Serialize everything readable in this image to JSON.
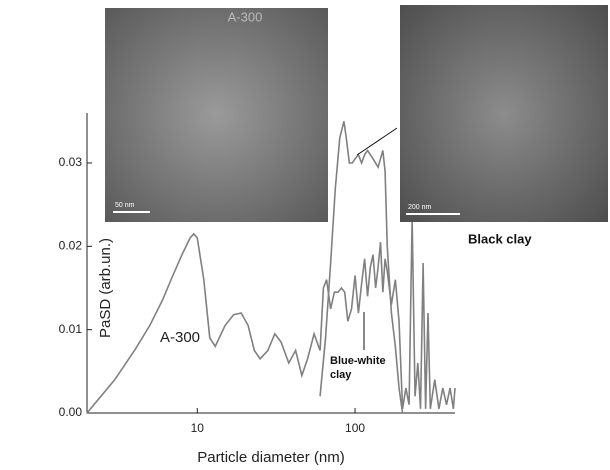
{
  "chart_data": {
    "type": "line",
    "x_label": "Particle  diameter  (nm)",
    "y_label": "PaSD  (arb.un.)",
    "xlim": [
      2,
      430
    ],
    "log_x": true,
    "xticks": [
      10,
      100
    ],
    "ylim": [
      0,
      0.036
    ],
    "yticks": [
      {
        "value": 0,
        "label": "0.00"
      },
      0.01,
      0.02,
      0.03
    ],
    "series": [
      {
        "name": "A-300",
        "color": "#808080",
        "x": [
          2,
          3,
          4,
          5,
          6,
          7,
          8,
          9,
          9.5,
          10,
          11,
          12,
          13,
          15,
          17,
          19,
          21,
          23,
          25,
          28,
          31,
          34,
          38,
          42,
          46,
          50,
          55,
          60
        ],
        "values": [
          0,
          0.004,
          0.0075,
          0.0105,
          0.0135,
          0.0165,
          0.019,
          0.021,
          0.0215,
          0.021,
          0.016,
          0.009,
          0.008,
          0.0105,
          0.0118,
          0.012,
          0.0105,
          0.0075,
          0.0065,
          0.0075,
          0.0095,
          0.0085,
          0.006,
          0.0075,
          0.0045,
          0.0065,
          0.0095,
          0.0075
        ]
      },
      {
        "name": "Blue-white clay",
        "color": "#808080",
        "x": [
          60,
          63,
          66,
          70,
          74,
          78,
          82,
          86,
          90,
          95,
          100,
          105,
          110,
          115,
          120,
          125,
          130,
          135,
          140,
          145,
          150,
          155,
          160,
          170,
          180,
          190,
          200,
          210,
          220,
          230,
          240,
          250,
          260,
          270,
          280,
          290,
          300,
          320,
          340,
          360,
          380,
          400,
          420,
          430
        ],
        "values": [
          0.0075,
          0.015,
          0.016,
          0.0125,
          0.0145,
          0.0145,
          0.015,
          0.0145,
          0.011,
          0.0125,
          0.0165,
          0.012,
          0.0155,
          0.0185,
          0.014,
          0.0175,
          0.019,
          0.015,
          0.0175,
          0.0205,
          0.0145,
          0.0185,
          0.017,
          0.013,
          0.016,
          0.011,
          0.0005,
          0.003,
          0.001,
          0.0235,
          0.002,
          0.006,
          0.0005,
          0.018,
          0.0005,
          0.012,
          0.0005,
          0.004,
          0.0005,
          0.003,
          0.001,
          0.003,
          0.0005,
          0.003
        ]
      },
      {
        "name": "Black clay",
        "color": "#808080",
        "x": [
          60,
          65,
          70,
          75,
          80,
          85,
          88,
          92,
          96,
          100,
          105,
          110,
          115,
          120,
          130,
          140,
          150,
          155,
          160,
          170,
          180,
          190,
          200
        ],
        "values": [
          0.002,
          0.009,
          0.018,
          0.027,
          0.033,
          0.035,
          0.033,
          0.03,
          0.03,
          0.0305,
          0.031,
          0.03,
          0.031,
          0.0315,
          0.0305,
          0.0295,
          0.0315,
          0.029,
          0.02,
          0.012,
          0.008,
          0.003,
          0
        ]
      }
    ],
    "insets": [
      {
        "label": "A-300",
        "scale_bar": "50 nm"
      },
      {
        "scale_bar": "200 nm"
      }
    ]
  }
}
